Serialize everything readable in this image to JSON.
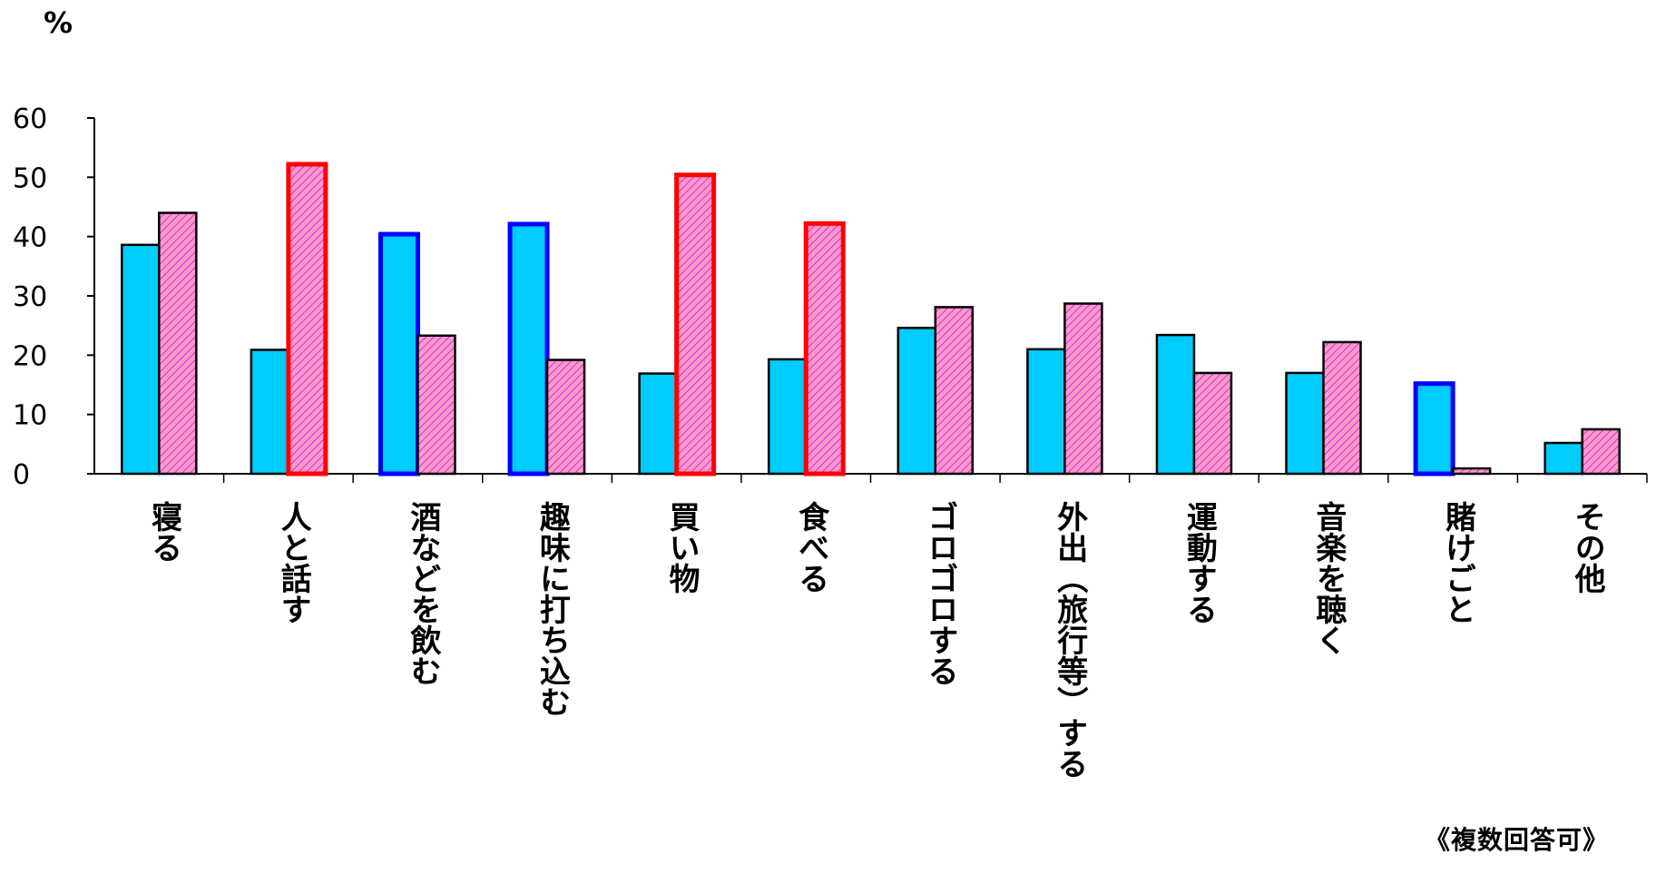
{
  "chart_data": {
    "type": "bar",
    "unit_label": "%",
    "note": "《複数回答可》",
    "ylim": [
      0,
      60
    ],
    "y_ticks": [
      "60",
      "50",
      "40",
      "30",
      "20",
      "10",
      "0"
    ],
    "categories": [
      "寝る",
      "人と話す",
      "酒などを飲む",
      "趣味に打ち込む",
      "買い物",
      "食べる",
      "ゴロゴロする",
      "外出（旅行等）する",
      "運動する",
      "音楽を聴く",
      "賭けごと",
      "その他"
    ],
    "series": [
      {
        "values": [
          38.6,
          20.9,
          40.4,
          42.1,
          16.9,
          19.3,
          24.6,
          21.0,
          23.4,
          17.0,
          15.2,
          5.2
        ]
      },
      {
        "values": [
          44.0,
          52.2,
          23.3,
          19.2,
          50.4,
          42.2,
          28.1,
          28.7,
          17.0,
          22.2,
          0.9,
          7.5
        ]
      }
    ],
    "highlight": [
      [
        false,
        false,
        true,
        true,
        false,
        false,
        false,
        false,
        false,
        false,
        true,
        false
      ],
      [
        false,
        true,
        false,
        false,
        true,
        true,
        false,
        false,
        false,
        false,
        false,
        false
      ]
    ],
    "colors": {
      "series1_fill": "#00CCFF",
      "series2_fill": "#FF99CC",
      "series2_hatch": "#CC33CC",
      "highlight_series1": "#0000FF",
      "highlight_series2": "#FF0000",
      "axis": "#000000"
    }
  }
}
